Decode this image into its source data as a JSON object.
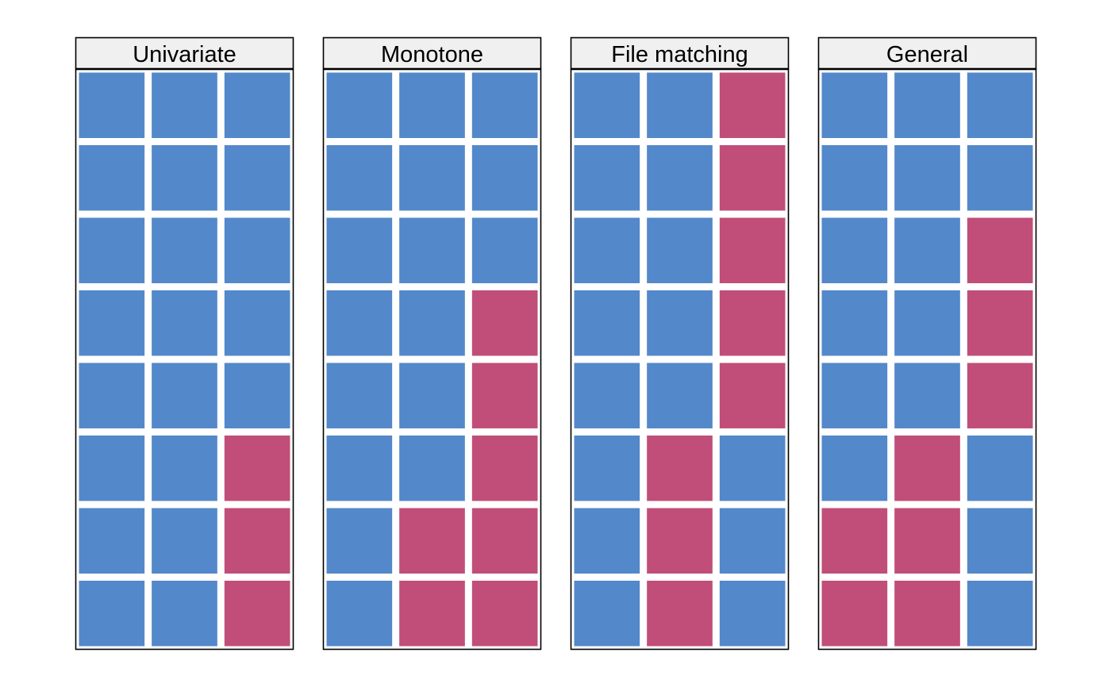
{
  "colors": {
    "observed": "#5388CA",
    "missing": "#C04E78",
    "strip_background": "#F0F0F0",
    "border": "#000000",
    "cell_gap": "#FFFFFF"
  },
  "chart_data": {
    "type": "heatmap",
    "title": "",
    "panels": [
      {
        "label": "Univariate",
        "rows": [
          [
            "observed",
            "observed",
            "observed"
          ],
          [
            "observed",
            "observed",
            "observed"
          ],
          [
            "observed",
            "observed",
            "observed"
          ],
          [
            "observed",
            "observed",
            "observed"
          ],
          [
            "observed",
            "observed",
            "observed"
          ],
          [
            "observed",
            "observed",
            "missing"
          ],
          [
            "observed",
            "observed",
            "missing"
          ],
          [
            "observed",
            "observed",
            "missing"
          ]
        ]
      },
      {
        "label": "Monotone",
        "rows": [
          [
            "observed",
            "observed",
            "observed"
          ],
          [
            "observed",
            "observed",
            "observed"
          ],
          [
            "observed",
            "observed",
            "observed"
          ],
          [
            "observed",
            "observed",
            "missing"
          ],
          [
            "observed",
            "observed",
            "missing"
          ],
          [
            "observed",
            "observed",
            "missing"
          ],
          [
            "observed",
            "missing",
            "missing"
          ],
          [
            "observed",
            "missing",
            "missing"
          ]
        ]
      },
      {
        "label": "File matching",
        "rows": [
          [
            "observed",
            "observed",
            "missing"
          ],
          [
            "observed",
            "observed",
            "missing"
          ],
          [
            "observed",
            "observed",
            "missing"
          ],
          [
            "observed",
            "observed",
            "missing"
          ],
          [
            "observed",
            "observed",
            "missing"
          ],
          [
            "observed",
            "missing",
            "observed"
          ],
          [
            "observed",
            "missing",
            "observed"
          ],
          [
            "observed",
            "missing",
            "observed"
          ]
        ]
      },
      {
        "label": "General",
        "rows": [
          [
            "observed",
            "observed",
            "observed"
          ],
          [
            "observed",
            "observed",
            "observed"
          ],
          [
            "observed",
            "observed",
            "missing"
          ],
          [
            "observed",
            "observed",
            "missing"
          ],
          [
            "observed",
            "observed",
            "missing"
          ],
          [
            "observed",
            "missing",
            "observed"
          ],
          [
            "missing",
            "missing",
            "observed"
          ],
          [
            "missing",
            "missing",
            "observed"
          ]
        ]
      }
    ]
  }
}
